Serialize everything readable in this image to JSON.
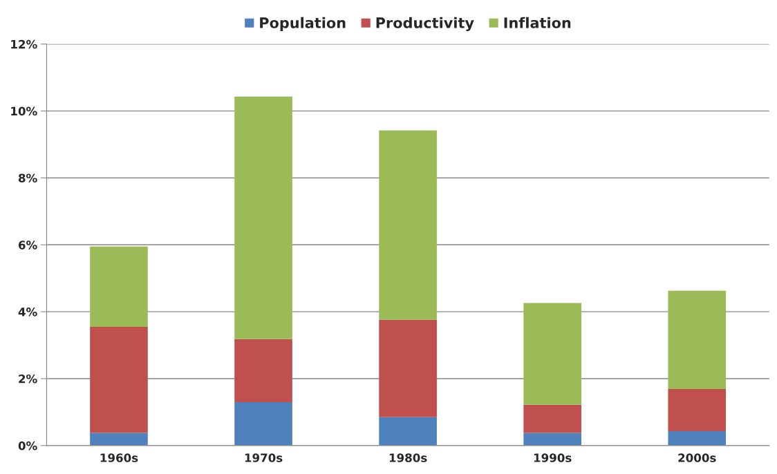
{
  "chart_data": {
    "type": "bar",
    "stacked": true,
    "categories": [
      "1960s",
      "1970s",
      "1980s",
      "1990s",
      "2000s"
    ],
    "series": [
      {
        "name": "Population",
        "color": "#4f81bd",
        "values": [
          0.38,
          1.3,
          0.85,
          0.38,
          0.43
        ]
      },
      {
        "name": "Productivity",
        "color": "#c0504d",
        "values": [
          3.17,
          1.88,
          2.91,
          0.84,
          1.26
        ]
      },
      {
        "name": "Inflation",
        "color": "#9bbb59",
        "values": [
          2.4,
          7.25,
          5.66,
          3.04,
          2.94
        ]
      }
    ],
    "ylim": [
      0,
      12
    ],
    "yticks": [
      {
        "value": 0,
        "label": "0%"
      },
      {
        "value": 2,
        "label": "2%"
      },
      {
        "value": 4,
        "label": "4%"
      },
      {
        "value": 6,
        "label": "6%"
      },
      {
        "value": 8,
        "label": "8%"
      },
      {
        "value": 10,
        "label": "10%"
      },
      {
        "value": 12,
        "label": "12%"
      }
    ],
    "grid": "y",
    "legend": "top"
  }
}
